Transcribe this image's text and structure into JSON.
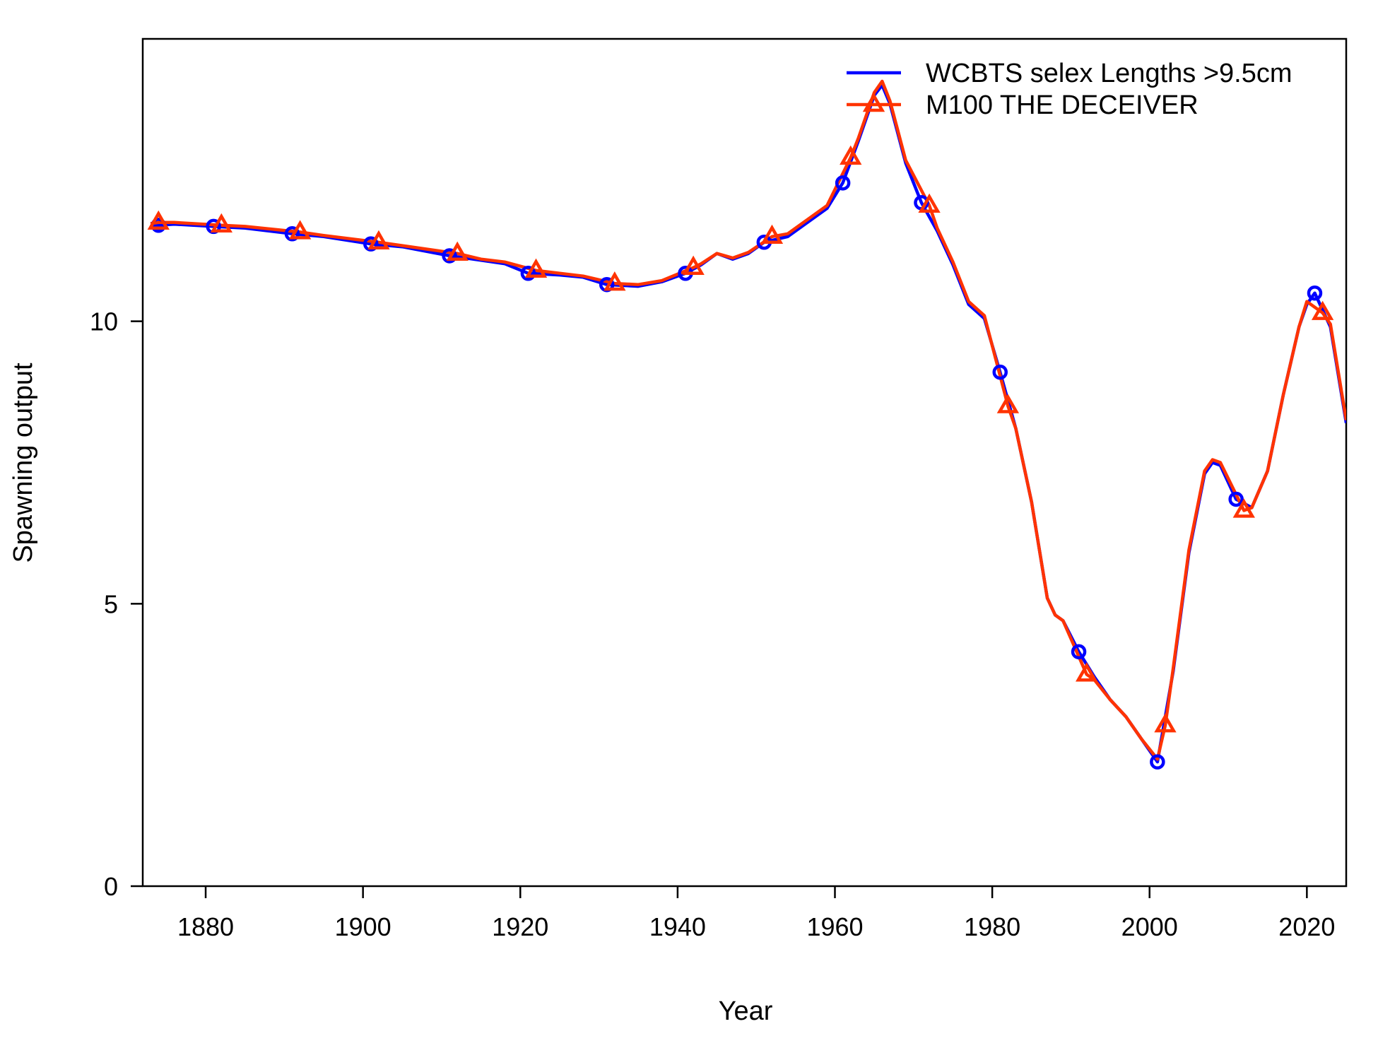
{
  "chart_data": {
    "type": "line",
    "title": "",
    "xlabel": "Year",
    "ylabel": "Spawning output",
    "xlim": [
      1872,
      2025
    ],
    "ylim": [
      0,
      15.0
    ],
    "xticks": [
      1880,
      1900,
      1920,
      1940,
      1960,
      1980,
      2000,
      2020
    ],
    "yticks": [
      0,
      5,
      10
    ],
    "grid": false,
    "legend_position": "top-right",
    "series": [
      {
        "name": "WCBTS selex Lengths >9.5cm",
        "color": "#0000ff",
        "marker": "circle",
        "marker_x": [
          1874,
          1881,
          1891,
          1901,
          1911,
          1921,
          1931,
          1941,
          1951,
          1961,
          1971,
          1981,
          1991,
          2001,
          2011,
          2021
        ],
        "x": [
          1873,
          1874,
          1876,
          1881,
          1885,
          1891,
          1895,
          1901,
          1905,
          1911,
          1915,
          1918,
          1921,
          1925,
          1928,
          1931,
          1935,
          1938,
          1941,
          1943,
          1945,
          1947,
          1949,
          1951,
          1954,
          1957,
          1959,
          1961,
          1963,
          1965,
          1966,
          1967,
          1969,
          1971,
          1973,
          1975,
          1977,
          1979,
          1981,
          1983,
          1985,
          1987,
          1988,
          1989,
          1991,
          1993,
          1995,
          1997,
          1999,
          2001,
          2003,
          2005,
          2007,
          2008,
          2009,
          2011,
          2013,
          2015,
          2017,
          2019,
          2020,
          2021,
          2023,
          2025
        ],
        "y": [
          11.7,
          11.7,
          11.72,
          11.68,
          11.65,
          11.55,
          11.5,
          11.37,
          11.32,
          11.16,
          11.08,
          11.02,
          10.85,
          10.82,
          10.78,
          10.65,
          10.62,
          10.7,
          10.85,
          11.0,
          11.2,
          11.1,
          11.2,
          11.4,
          11.5,
          11.8,
          12.0,
          12.45,
          13.2,
          14.0,
          14.18,
          13.85,
          12.8,
          12.1,
          11.6,
          11.0,
          10.3,
          10.05,
          9.1,
          8.1,
          6.8,
          5.1,
          4.8,
          4.7,
          4.15,
          3.7,
          3.3,
          3.0,
          2.6,
          2.2,
          3.8,
          5.9,
          7.3,
          7.5,
          7.45,
          6.85,
          6.7,
          7.35,
          8.7,
          9.9,
          10.3,
          10.5,
          9.9,
          8.2
        ]
      },
      {
        "name": "M100 THE DECEIVER",
        "color": "#ff3300",
        "marker": "triangle",
        "marker_x": [
          1874,
          1882,
          1892,
          1902,
          1912,
          1922,
          1932,
          1942,
          1952,
          1962,
          1972,
          1982,
          1992,
          2002,
          2012,
          2022
        ],
        "x": [
          1873,
          1874,
          1876,
          1882,
          1885,
          1892,
          1895,
          1902,
          1905,
          1912,
          1915,
          1918,
          1922,
          1925,
          1928,
          1932,
          1935,
          1938,
          1942,
          1943,
          1945,
          1947,
          1949,
          1952,
          1954,
          1957,
          1959,
          1962,
          1963,
          1965,
          1966,
          1967,
          1969,
          1972,
          1973,
          1975,
          1977,
          1979,
          1982,
          1983,
          1985,
          1987,
          1988,
          1989,
          1992,
          1993,
          1995,
          1997,
          1999,
          2001,
          2002,
          2003,
          2005,
          2007,
          2008,
          2009,
          2012,
          2013,
          2015,
          2017,
          2019,
          2020,
          2022,
          2023,
          2025
        ],
        "y": [
          11.73,
          11.75,
          11.75,
          11.7,
          11.68,
          11.58,
          11.52,
          11.4,
          11.34,
          11.2,
          11.1,
          11.05,
          10.9,
          10.85,
          10.8,
          10.67,
          10.65,
          10.72,
          10.95,
          11.02,
          11.2,
          11.12,
          11.22,
          11.5,
          11.55,
          11.85,
          12.05,
          12.9,
          13.25,
          14.05,
          14.25,
          13.9,
          12.85,
          12.05,
          11.65,
          11.05,
          10.35,
          10.1,
          8.5,
          8.1,
          6.8,
          5.1,
          4.8,
          4.7,
          3.75,
          3.65,
          3.3,
          3.0,
          2.6,
          2.25,
          2.85,
          3.85,
          5.95,
          7.35,
          7.55,
          7.5,
          6.65,
          6.7,
          7.35,
          8.7,
          9.9,
          10.35,
          10.15,
          9.95,
          8.25
        ]
      }
    ]
  }
}
